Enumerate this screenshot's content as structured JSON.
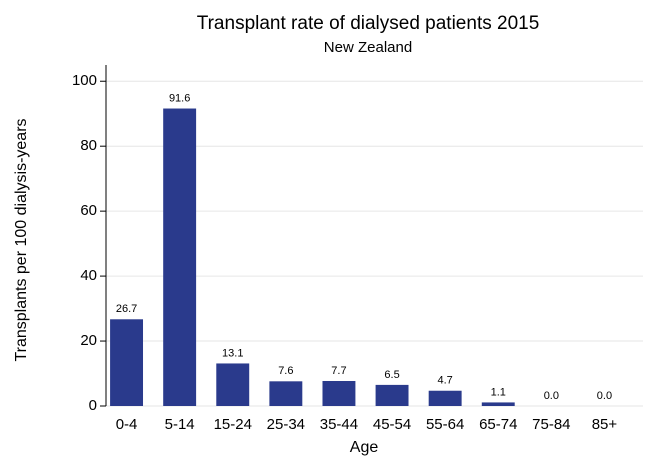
{
  "chart_data": {
    "type": "bar",
    "title": "Transplant rate of dialysed patients 2015",
    "subtitle": "New Zealand",
    "x_label": "Age",
    "y_label": "Transplants per 100 dialysis-years",
    "categories": [
      "0-4",
      "5-14",
      "15-24",
      "25-34",
      "35-44",
      "45-54",
      "55-64",
      "65-74",
      "75-84",
      "85+"
    ],
    "values": [
      26.7,
      91.6,
      13.1,
      7.6,
      7.7,
      6.5,
      4.7,
      1.1,
      0,
      0
    ],
    "value_labels": [
      "26.7",
      "91.6",
      "13.1",
      "7.6",
      "7.7",
      "6.5",
      "4.7",
      "1.1",
      "0.0",
      "0.0"
    ],
    "color": "#2a3a8c",
    "ylim": [
      0,
      105
    ],
    "yticks": [
      0,
      20,
      40,
      60,
      80,
      100
    ],
    "grid": true
  }
}
